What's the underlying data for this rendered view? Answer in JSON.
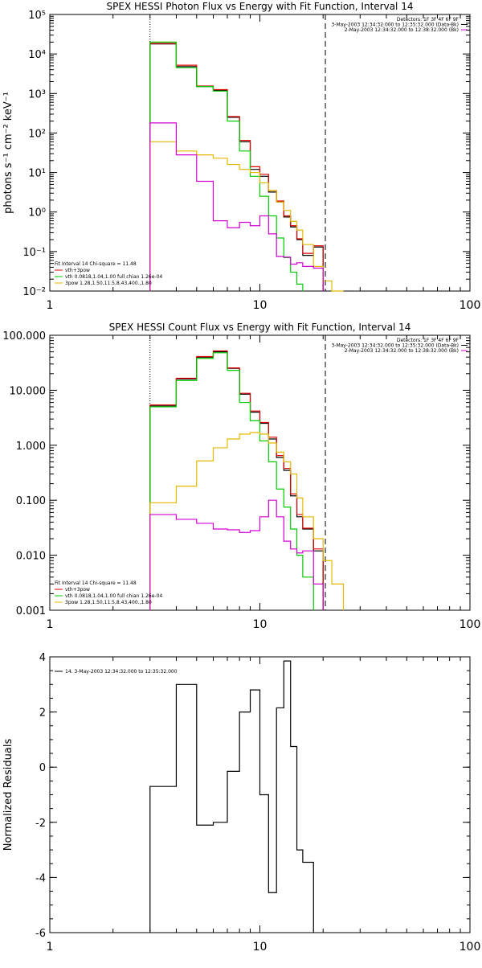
{
  "chart_data": [
    {
      "type": "line",
      "title": "SPEX HESSI Photon Flux vs Energy with Fit Function, Interval 14",
      "ylabel": "photons s⁻¹ cm⁻² keV⁻¹",
      "xlabel": "",
      "xscale": "log",
      "yscale": "log",
      "xlim": [
        1,
        100
      ],
      "ylim": [
        0.01,
        100000
      ],
      "x_ticks": [
        "1",
        "10",
        "100"
      ],
      "y_ticks": [
        "10⁻²",
        "10⁻¹",
        "10⁰",
        "10¹",
        "10²",
        "10³",
        "10⁴",
        "10⁵"
      ],
      "y_tick_values": [
        0.01,
        0.1,
        1,
        10,
        100,
        1000,
        10000,
        100000
      ],
      "vlines": [
        {
          "x": 3.0,
          "style": "dotted"
        },
        {
          "x": 20.5,
          "style": "dashed"
        }
      ],
      "header_lines": [
        {
          "text": "Detectors: 1F 3F 4F 6F 9F",
          "color": "#000000"
        },
        {
          "text": "3-May-2003 12:34:32.000 to 12:35:32.000 (Data-Bk)",
          "color": "#000000"
        },
        {
          "text": "2-May-2003 12:34:32.000 to 12:38:32.000 (Bk)",
          "color": "#d400d4"
        }
      ],
      "legend_lines": [
        {
          "text": "Fit Interval 14    Chi-square = 11.48",
          "color": "#000000"
        },
        {
          "text": "vth+3pow",
          "color": "#e00000"
        },
        {
          "text": "vth 0.0818,1.04,1.00  full chian 1.26e-04",
          "color": "#00cc00"
        },
        {
          "text": "3pow 1.28,1.50,11.5,8.43,400.,1.80",
          "color": "#e6b800"
        }
      ],
      "bin_edges": [
        3.0,
        4.0,
        5.0,
        6.0,
        7.0,
        8.0,
        9.0,
        10.0,
        11.0,
        12.0,
        13.0,
        14.0,
        15.0,
        16.0,
        18.0,
        20.0,
        22.0,
        25.0,
        28.0
      ],
      "series": [
        {
          "color": "#000000",
          "values": [
            18000,
            4800,
            1500,
            1200,
            250,
            60,
            12,
            8,
            3.2,
            1.8,
            0.75,
            0.42,
            0.2,
            0.08,
            0.13,
            null,
            null,
            null
          ]
        },
        {
          "color": "#e00000",
          "values": [
            18500,
            5200,
            1550,
            1250,
            260,
            65,
            14,
            9,
            3.5,
            1.9,
            0.8,
            0.45,
            0.21,
            0.09,
            0.14,
            null,
            null,
            null
          ]
        },
        {
          "color": "#00cc00",
          "values": [
            20000,
            4500,
            1500,
            1150,
            200,
            35,
            8,
            2.5,
            0.8,
            0.22,
            0.07,
            0.03,
            0.015,
            null,
            null,
            null,
            null,
            null
          ]
        },
        {
          "color": "#e6b800",
          "values": [
            60,
            35,
            28,
            23,
            16,
            12,
            10,
            5.5,
            3.5,
            1.8,
            1.1,
            0.58,
            0.35,
            0.15,
            0.042,
            0.018,
            0.008,
            null
          ]
        },
        {
          "color": "#d400d4",
          "values": [
            180,
            28,
            6.0,
            0.6,
            0.4,
            0.55,
            0.45,
            0.8,
            0.28,
            0.075,
            0.072,
            0.048,
            0.052,
            0.042,
            0.038,
            null,
            null,
            null
          ]
        }
      ]
    },
    {
      "type": "line",
      "title": "SPEX HESSI Count Flux vs Energy with Fit Function, Interval 14",
      "ylabel": "",
      "xlabel": "",
      "xscale": "log",
      "yscale": "log",
      "xlim": [
        1,
        100
      ],
      "ylim": [
        0.001,
        100
      ],
      "x_ticks": [
        "1",
        "10",
        "100"
      ],
      "y_ticks": [
        "0.001",
        "0.010",
        "0.100",
        "1.000",
        "10.000",
        "100.000"
      ],
      "y_tick_values": [
        0.001,
        0.01,
        0.1,
        1,
        10,
        100
      ],
      "vlines": [
        {
          "x": 3.0,
          "style": "dotted"
        },
        {
          "x": 20.5,
          "style": "dashed"
        }
      ],
      "header_lines": [
        {
          "text": "Detectors: 1F 3F 4F 6F 9F",
          "color": "#000000"
        },
        {
          "text": "3-May-2003 12:34:32.000 to 12:35:32.000 (Data-Bk)",
          "color": "#000000"
        },
        {
          "text": "2-May-2003 12:34:32.000 to 12:38:32.000 (Bk)",
          "color": "#d400d4"
        }
      ],
      "legend_lines": [
        {
          "text": "Fit Interval 14    Chi-square = 11.48",
          "color": "#000000"
        },
        {
          "text": "vth+3pow",
          "color": "#e00000"
        },
        {
          "text": "vth 0.0818,1.04,1.00  full chian 1.26e-04",
          "color": "#00cc00"
        },
        {
          "text": "3pow 1.28,1.50,11.5,8.43,400.,1.80",
          "color": "#e6b800"
        }
      ],
      "bin_edges": [
        3.0,
        4.0,
        5.0,
        6.0,
        7.0,
        8.0,
        9.0,
        10.0,
        11.0,
        12.0,
        13.0,
        14.0,
        15.0,
        16.0,
        18.0,
        20.0,
        22.0,
        25.0,
        28.0
      ],
      "series": [
        {
          "color": "#000000",
          "values": [
            5.2,
            16,
            40,
            50,
            25,
            8.5,
            4.0,
            2.5,
            1.3,
            0.6,
            0.35,
            0.12,
            0.05,
            0.03,
            0.012,
            null,
            null,
            null
          ]
        },
        {
          "color": "#e00000",
          "values": [
            5.4,
            16.5,
            41,
            52,
            25.5,
            8.8,
            4.2,
            2.6,
            1.4,
            0.65,
            0.38,
            0.13,
            0.055,
            0.031,
            0.013,
            null,
            null,
            null
          ]
        },
        {
          "color": "#00cc00",
          "values": [
            5.0,
            15,
            38,
            48,
            23,
            6.0,
            2.8,
            1.2,
            0.5,
            0.16,
            0.075,
            0.03,
            0.01,
            0.004,
            null,
            null,
            null,
            null
          ]
        },
        {
          "color": "#e6b800",
          "values": [
            0.09,
            0.18,
            0.52,
            0.9,
            1.3,
            1.6,
            1.7,
            1.6,
            1.1,
            0.75,
            0.5,
            0.3,
            0.11,
            0.05,
            0.02,
            0.008,
            0.003,
            null
          ]
        },
        {
          "color": "#d400d4",
          "values": [
            0.055,
            0.045,
            0.038,
            0.03,
            0.029,
            0.026,
            0.028,
            0.05,
            0.1,
            0.05,
            0.018,
            0.013,
            0.011,
            0.012,
            0.003,
            null,
            null,
            null
          ]
        }
      ]
    },
    {
      "type": "line",
      "title": "",
      "ylabel": "Normalized Residuals",
      "xlabel": "",
      "xscale": "log",
      "yscale": "linear",
      "xlim": [
        1,
        100
      ],
      "ylim": [
        -6,
        4
      ],
      "x_ticks": [
        "1",
        "10",
        "100"
      ],
      "y_ticks": [
        "-6",
        "-4",
        "-2",
        "0",
        "2",
        "4"
      ],
      "y_tick_values": [
        -6,
        -4,
        -2,
        0,
        2,
        4
      ],
      "vlines": [],
      "header_lines": [],
      "legend_lines": [
        {
          "text": "14.  3-May-2003 12:34:32.000 to 12:35:32.000",
          "color": "#000000"
        }
      ],
      "bin_edges": [
        3.0,
        4.0,
        5.0,
        6.0,
        7.0,
        8.0,
        9.0,
        10.0,
        11.0,
        12.0,
        13.0,
        14.0,
        15.0,
        16.0,
        18.0,
        20.0
      ],
      "series": [
        {
          "color": "#000000",
          "values": [
            -0.7,
            3.0,
            -2.1,
            -2.0,
            -0.15,
            2.0,
            2.8,
            -1.0,
            -4.55,
            2.15,
            3.85,
            0.75,
            -3.0,
            -3.45,
            null
          ]
        }
      ]
    }
  ]
}
